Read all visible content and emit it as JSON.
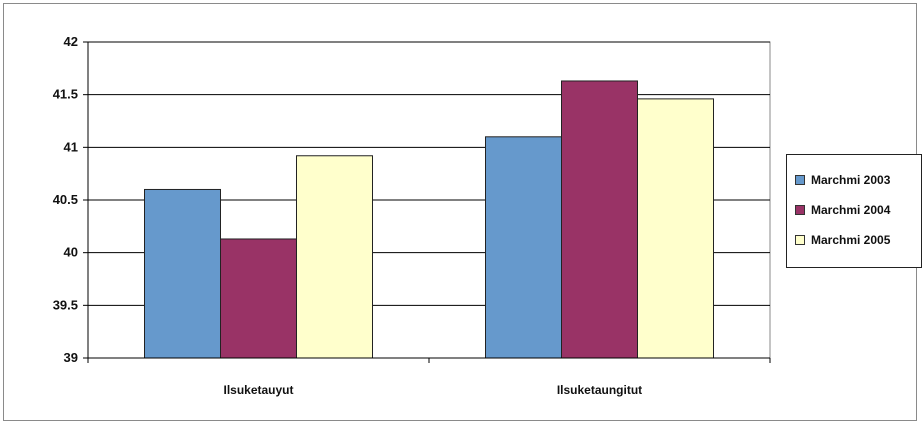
{
  "chart_data": {
    "type": "bar",
    "categories": [
      "Ilsuketauyut",
      "Ilsuketaungitut"
    ],
    "series": [
      {
        "name": "Marchmi 2003",
        "values": [
          40.6,
          41.1
        ],
        "color": "#6699cc"
      },
      {
        "name": "Marchmi 2004",
        "values": [
          40.13,
          41.63
        ],
        "color": "#993366"
      },
      {
        "name": "Marchmi 2005",
        "values": [
          40.92,
          41.46
        ],
        "color": "#ffffcc"
      }
    ],
    "title": "",
    "xlabel": "",
    "ylabel": "",
    "ylim": [
      39,
      42
    ],
    "yticks": [
      "39",
      "39.5",
      "40",
      "40.5",
      "41",
      "41.5",
      "42"
    ],
    "grid": true,
    "legend_position": "right"
  }
}
